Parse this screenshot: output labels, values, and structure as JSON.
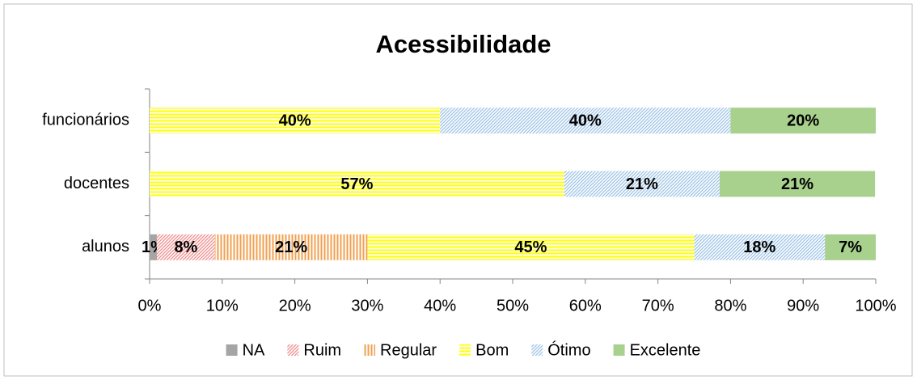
{
  "chart_data": {
    "type": "stacked-barh",
    "title": "Acessibilidade",
    "categories": [
      "alunos",
      "docentes",
      "funcionários"
    ],
    "series": [
      {
        "name": "NA",
        "color": "#a5a5a5",
        "pattern": "solid",
        "values": [
          1,
          null,
          null
        ],
        "value_labels": [
          "1%",
          null,
          null
        ]
      },
      {
        "name": "Ruim",
        "color": "#f08c8c",
        "pattern": "diagonal",
        "values": [
          8,
          null,
          null
        ],
        "value_labels": [
          "8%",
          null,
          null
        ]
      },
      {
        "name": "Regular",
        "color": "#f0a050",
        "pattern": "vertical",
        "values": [
          21,
          null,
          null
        ],
        "value_labels": [
          "21%",
          null,
          null
        ]
      },
      {
        "name": "Bom",
        "color": "#ffff00",
        "pattern": "horizontal",
        "values": [
          45,
          57.1,
          40
        ],
        "value_labels": [
          "45%",
          "57%",
          "40%"
        ]
      },
      {
        "name": "Ótimo",
        "color": "#9dc3e6",
        "pattern": "diagonal",
        "values": [
          18,
          21.4,
          40
        ],
        "value_labels": [
          "18%",
          "21%",
          "40%"
        ]
      },
      {
        "name": "Excelente",
        "color": "#a9d18e",
        "pattern": "solid",
        "values": [
          7,
          21.4,
          20
        ],
        "value_labels": [
          "7%",
          "21%",
          "20%"
        ]
      }
    ],
    "xlim": [
      0,
      100
    ],
    "xticks": [
      {
        "value": 0,
        "label": "0%"
      },
      {
        "value": 10,
        "label": "10%"
      },
      {
        "value": 20,
        "label": "20%"
      },
      {
        "value": 30,
        "label": "30%"
      },
      {
        "value": 40,
        "label": "40%"
      },
      {
        "value": 50,
        "label": "50%"
      },
      {
        "value": 60,
        "label": "60%"
      },
      {
        "value": 70,
        "label": "70%"
      },
      {
        "value": 80,
        "label": "80%"
      },
      {
        "value": 90,
        "label": "90%"
      },
      {
        "value": 100,
        "label": "100%"
      }
    ],
    "legend": "bottom"
  }
}
